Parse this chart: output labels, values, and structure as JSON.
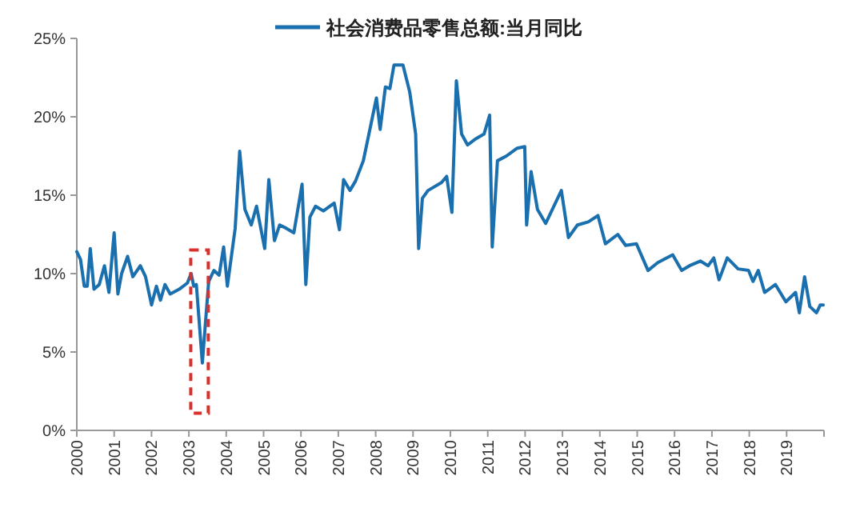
{
  "chart_data": {
    "type": "line",
    "legend": "top",
    "grid": false,
    "marker": "none",
    "line_style": "solid",
    "xlim": [
      2000,
      2020
    ],
    "xticks": [
      2000,
      2001,
      2002,
      2003,
      2004,
      2005,
      2006,
      2007,
      2008,
      2009,
      2010,
      2011,
      2012,
      2013,
      2014,
      2015,
      2016,
      2017,
      2018,
      2019,
      {
        "value": 2020,
        "label": null
      }
    ],
    "ylim": [
      0,
      25
    ],
    "yticks": [
      {
        "value": 0,
        "label": "0%"
      },
      {
        "value": 5,
        "label": "5%"
      },
      {
        "value": 10,
        "label": "10%"
      },
      {
        "value": 15,
        "label": "15%"
      },
      {
        "value": 20,
        "label": "20%"
      },
      {
        "value": 25,
        "label": "25%"
      }
    ],
    "series": [
      {
        "name": "社会消费品零售总额:当月同比",
        "color": "#1a6fae",
        "x": [
          2000.0,
          2000.1,
          2000.2,
          2000.28,
          2000.36,
          2000.46,
          2000.6,
          2000.74,
          2000.86,
          2001.0,
          2001.1,
          2001.2,
          2001.36,
          2001.5,
          2001.7,
          2001.84,
          2002.0,
          2002.13,
          2002.24,
          2002.36,
          2002.5,
          2002.74,
          2002.96,
          2003.06,
          2003.13,
          2003.2,
          2003.36,
          2003.53,
          2003.67,
          2003.81,
          2003.93,
          2004.03,
          2004.24,
          2004.36,
          2004.5,
          2004.67,
          2004.81,
          2005.03,
          2005.14,
          2005.29,
          2005.43,
          2005.6,
          2005.81,
          2006.03,
          2006.13,
          2006.24,
          2006.39,
          2006.6,
          2006.89,
          2007.03,
          2007.14,
          2007.31,
          2007.46,
          2007.67,
          2008.02,
          2008.12,
          2008.26,
          2008.38,
          2008.49,
          2008.73,
          2008.91,
          2009.07,
          2009.15,
          2009.25,
          2009.4,
          2009.76,
          2009.9,
          2010.04,
          2010.16,
          2010.3,
          2010.46,
          2010.68,
          2010.9,
          2011.05,
          2011.12,
          2011.26,
          2011.5,
          2011.79,
          2011.99,
          2012.04,
          2012.16,
          2012.33,
          2012.55,
          2012.97,
          2013.16,
          2013.4,
          2013.69,
          2013.95,
          2014.15,
          2014.48,
          2014.69,
          2014.98,
          2015.29,
          2015.55,
          2015.95,
          2016.19,
          2016.4,
          2016.69,
          2016.9,
          2017.05,
          2017.19,
          2017.41,
          2017.7,
          2017.98,
          2018.1,
          2018.24,
          2018.41,
          2018.7,
          2018.98,
          2019.24,
          2019.34,
          2019.48,
          2019.62,
          2019.8,
          2019.9,
          2019.98
        ],
        "values": [
          11.4,
          10.9,
          9.2,
          9.2,
          11.6,
          9.0,
          9.3,
          10.5,
          8.8,
          12.6,
          8.7,
          10.0,
          11.1,
          9.8,
          10.5,
          9.8,
          8.0,
          9.2,
          8.3,
          9.3,
          8.7,
          9.0,
          9.4,
          10.0,
          9.2,
          9.3,
          4.3,
          9.5,
          10.2,
          9.9,
          11.7,
          9.2,
          12.9,
          17.8,
          14.1,
          13.1,
          14.3,
          11.6,
          16.0,
          12.1,
          13.1,
          12.9,
          12.6,
          15.7,
          9.3,
          13.6,
          14.3,
          14.0,
          14.5,
          12.8,
          16.0,
          15.3,
          15.9,
          17.2,
          21.2,
          19.2,
          21.9,
          21.8,
          23.3,
          23.3,
          21.6,
          18.9,
          11.6,
          14.8,
          15.3,
          15.8,
          16.2,
          13.9,
          22.3,
          18.9,
          18.2,
          18.6,
          18.9,
          20.1,
          11.7,
          17.2,
          17.5,
          18.0,
          18.1,
          13.1,
          16.5,
          14.1,
          13.2,
          15.3,
          12.3,
          13.1,
          13.3,
          13.7,
          11.9,
          12.5,
          11.8,
          11.9,
          10.2,
          10.7,
          11.2,
          10.2,
          10.5,
          10.8,
          10.5,
          11.0,
          9.6,
          11.0,
          10.3,
          10.2,
          9.5,
          10.2,
          8.8,
          9.3,
          8.2,
          8.8,
          7.5,
          9.8,
          7.9,
          7.5,
          8.0,
          8.0
        ]
      }
    ]
  }
}
